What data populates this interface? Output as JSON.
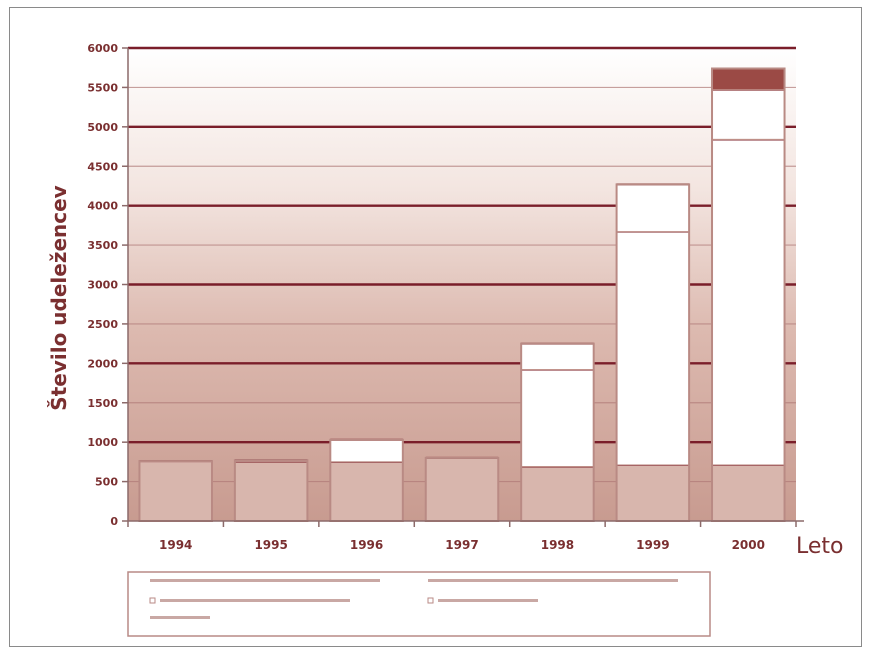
{
  "chart_data": {
    "type": "bar",
    "stacked": true,
    "ylabel": "Število udeležencev",
    "xlabel": "Leto",
    "ylim": [
      0,
      6000
    ],
    "yticks": [
      0,
      500,
      1000,
      1500,
      2000,
      2500,
      3000,
      3500,
      4000,
      4500,
      5000,
      5500,
      6000
    ],
    "categories": [
      "1994",
      "1995",
      "1996",
      "1997",
      "1998",
      "1999",
      "2000"
    ],
    "series": [
      {
        "color": "#d8b6ad",
        "values": [
          760,
          750,
          750,
          800,
          690,
          710,
          710
        ]
      },
      {
        "color": "#ffffff",
        "values": [
          0,
          0,
          0,
          0,
          1230,
          2960,
          4130
        ]
      },
      {
        "color": "#ffffff",
        "values": [
          0,
          20,
          280,
          0,
          330,
          600,
          630
        ]
      },
      {
        "color": "#9b4a45",
        "values": [
          0,
          0,
          0,
          0,
          0,
          0,
          270
        ]
      }
    ],
    "grid": true,
    "legend_position": "bottom",
    "colors": {
      "grid": "#7a1e2a",
      "axis": "#8c6a6a",
      "text": "#7a2f30",
      "bar_border": "#bf8f88"
    }
  }
}
